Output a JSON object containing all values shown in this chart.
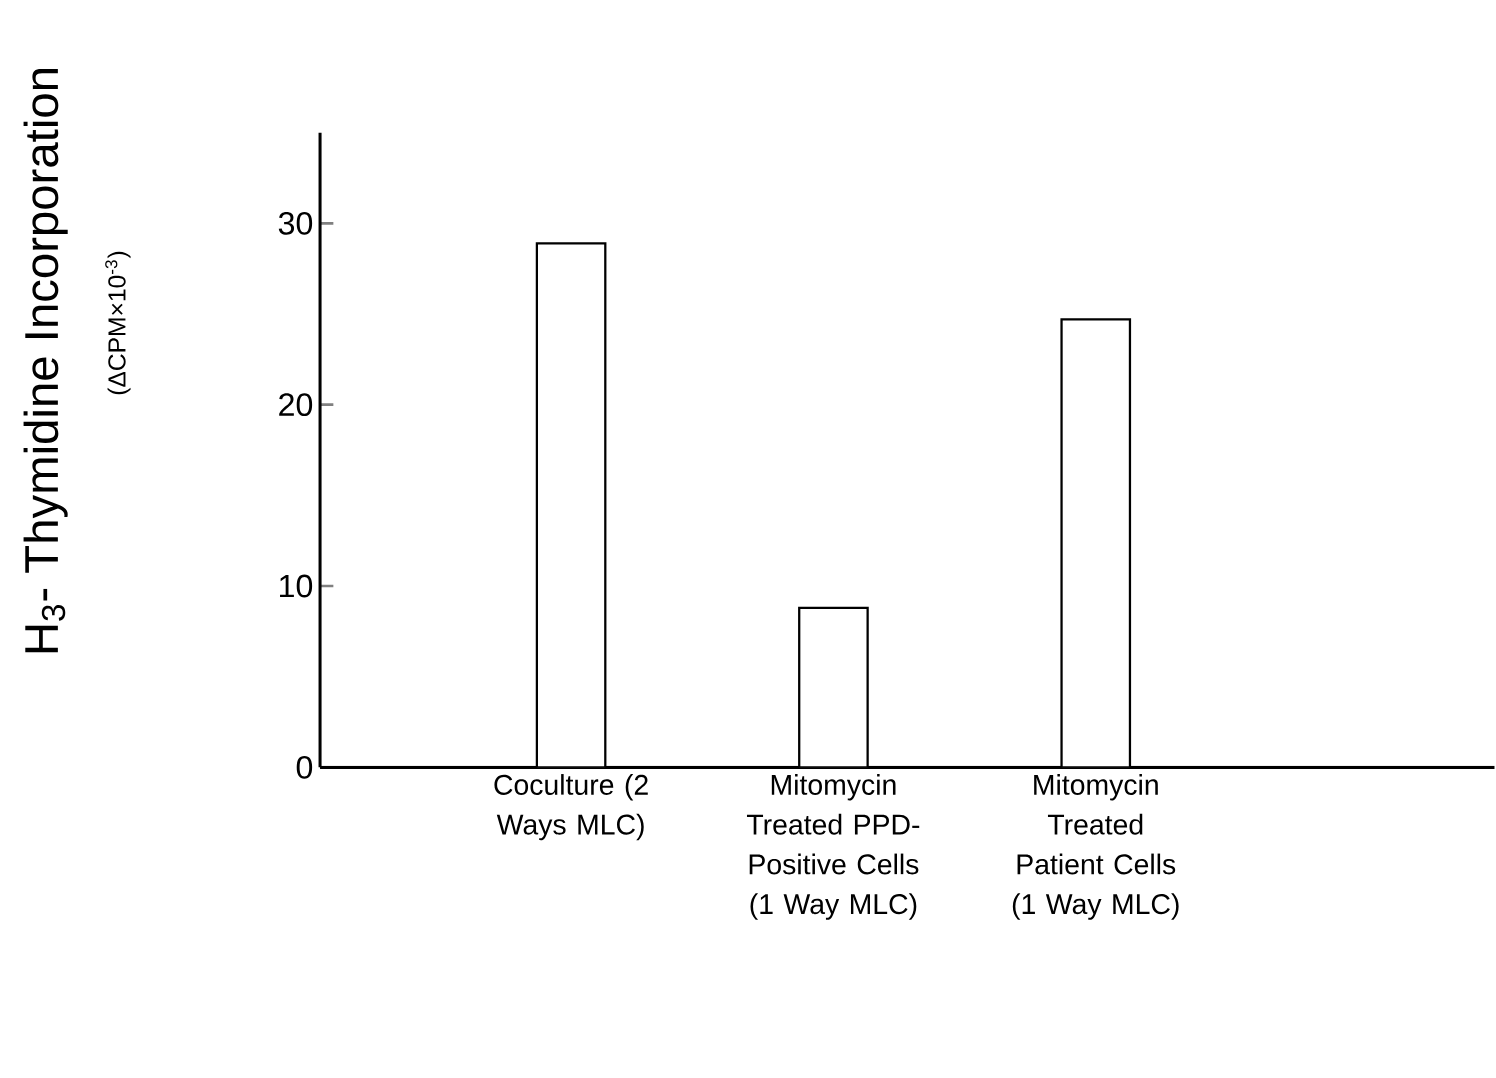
{
  "chart_data": {
    "type": "bar",
    "ylabel": "H$_{3}$- Thymidine Incorporation",
    "annotations": [
      "(ΔCPM×10$^{-3}$)"
    ],
    "categories": [
      "Coculture (2 Ways MLC)",
      "Mitomycin Treated PPD-Positive Cells (1 Way MLC)",
      "Mitomycin Treated Patient Cells (1 Way MLC)"
    ],
    "values": [
      28.9,
      8.8,
      24.7
    ],
    "color": "#ffffff",
    "ylim": [
      0,
      35
    ],
    "yticks": [
      0,
      10,
      20,
      30
    ],
    "grid": false
  }
}
